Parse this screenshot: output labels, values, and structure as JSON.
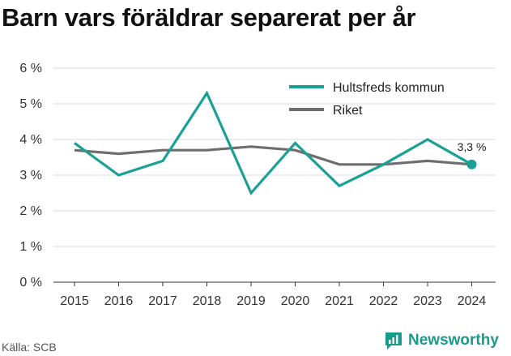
{
  "chart_data": {
    "type": "line",
    "title": "Barn vars föräldrar separerat per år",
    "xlabel": "",
    "ylabel": "",
    "x": [
      "2015",
      "2016",
      "2017",
      "2018",
      "2019",
      "2020",
      "2021",
      "2022",
      "2023",
      "2024"
    ],
    "ylim": [
      0,
      6
    ],
    "yticks": [
      0,
      1,
      2,
      3,
      4,
      5,
      6
    ],
    "ytick_labels": [
      "0 %",
      "1 %",
      "2 %",
      "3 %",
      "4 %",
      "5 %",
      "6 %"
    ],
    "grid": true,
    "legend_position": "top-right",
    "series": [
      {
        "name": "Hultsfreds kommun",
        "color": "#1aa196",
        "values": [
          3.9,
          3.0,
          3.4,
          5.3,
          2.5,
          3.9,
          2.7,
          3.3,
          4.0,
          3.3
        ]
      },
      {
        "name": "Riket",
        "color": "#6e6e6e",
        "values": [
          3.7,
          3.6,
          3.7,
          3.7,
          3.8,
          3.7,
          3.3,
          3.3,
          3.4,
          3.3
        ]
      }
    ],
    "annotation": "3,3 %"
  },
  "source": "Källa: SCB",
  "brand": {
    "name": "Newsworthy",
    "icon": "newsworthy-logo-icon",
    "color": "#1a9a8a"
  }
}
